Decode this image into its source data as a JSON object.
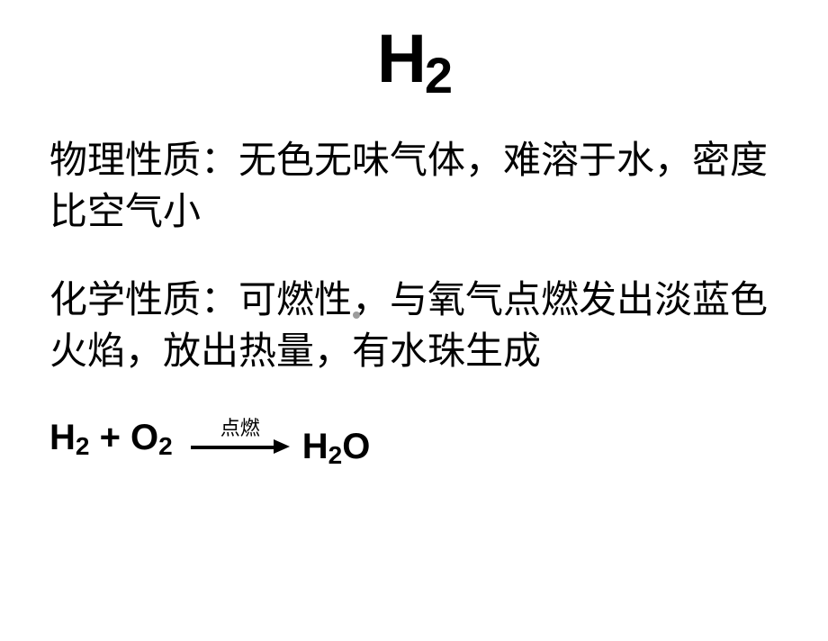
{
  "title": {
    "symbol": "H",
    "subscript": "2"
  },
  "physical": {
    "label": "物理性质：",
    "text": "无色无味气体，难溶于水，密度比空气小"
  },
  "chemical": {
    "label": "化学性质：",
    "text": "可燃性，与氧气点燃发出淡蓝色火焰，放出热量，有水珠生成"
  },
  "equation": {
    "left_h": "H",
    "left_h_sub": "2",
    "plus": " + O",
    "left_o_sub": "2",
    "arrow_label": "点燃",
    "right_h": "H",
    "right_sub": "2",
    "right_o": "O"
  },
  "colors": {
    "background": "#ffffff",
    "text": "#000000",
    "dot": "#9c9c9c"
  },
  "fonts": {
    "title_size": 76,
    "body_size": 42,
    "equation_size": 40,
    "arrow_label_size": 22
  }
}
